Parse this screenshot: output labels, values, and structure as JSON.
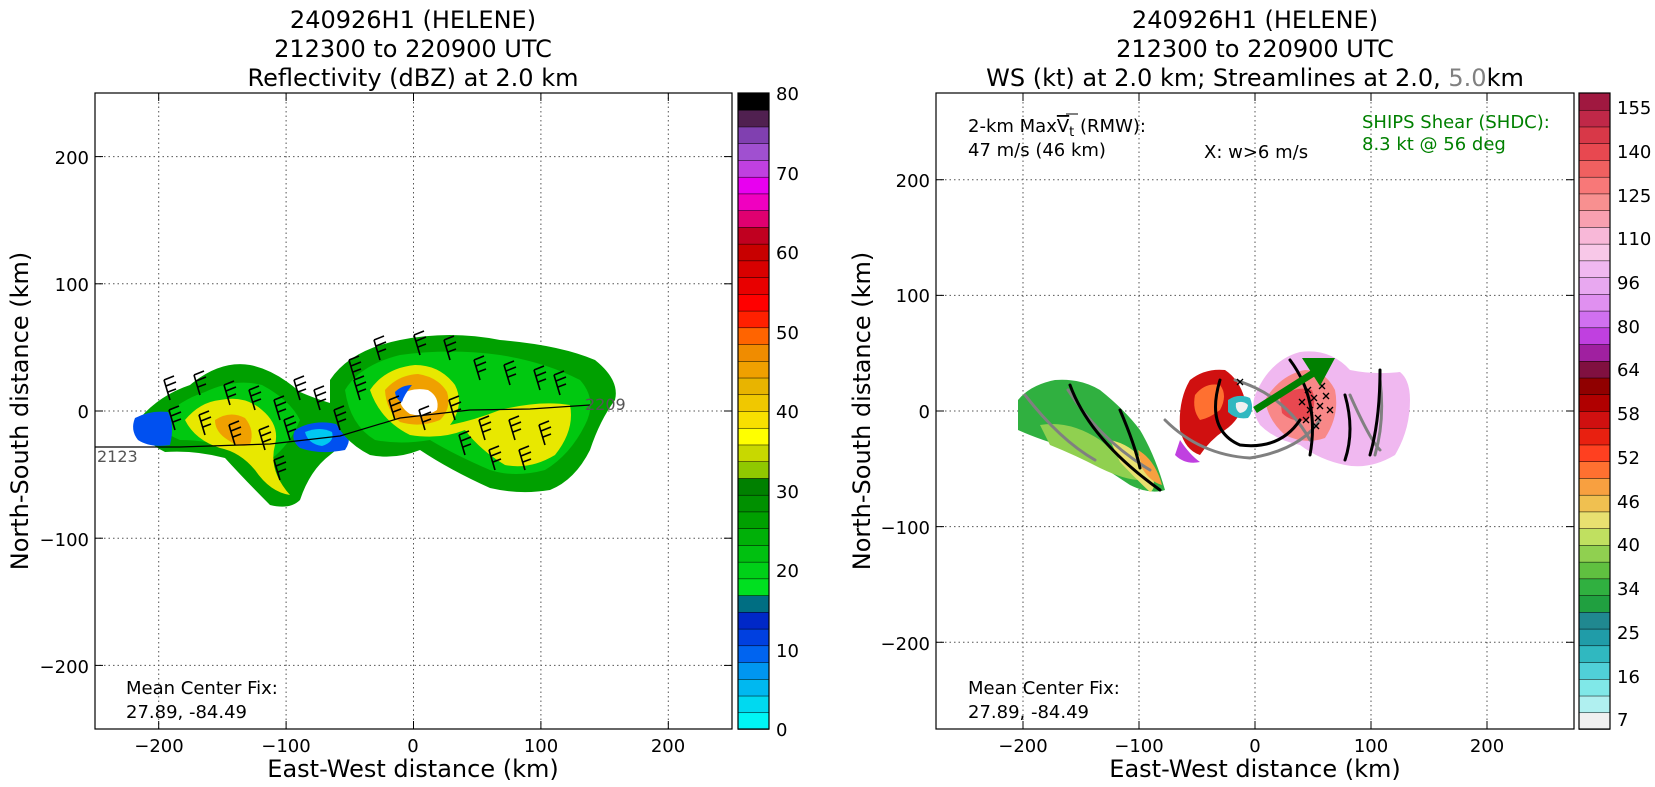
{
  "left_panel": {
    "title_lines": [
      "240926H1 (HELENE)",
      "212300 to 220900 UTC",
      "Reflectivity (dBZ) at 2.0 km"
    ],
    "xlabel": "East-West distance (km)",
    "ylabel": "North-South distance (km)",
    "x_ticks": [
      "−200",
      "−100",
      "0",
      "100",
      "200"
    ],
    "y_ticks": [
      "200",
      "100",
      "0",
      "−100",
      "−200"
    ],
    "center_fix_label": "Mean Center Fix:",
    "center_fix_value": "27.89, -84.49",
    "track_start_label": "2123",
    "track_end_label": "2209",
    "colorbar_ticks": [
      "80",
      "70",
      "60",
      "50",
      "40",
      "30",
      "20",
      "10",
      "0"
    ]
  },
  "right_panel": {
    "title_lines": [
      "240926H1 (HELENE)",
      "212300 to 220900 UTC"
    ],
    "title_line3_a": "WS (kt) at 2.0 km; Streamlines at 2.0, ",
    "title_line3_b": "5.0",
    "title_line3_c": "km",
    "xlabel": "East-West distance (km)",
    "ylabel": "North-South distance (km)",
    "x_ticks": [
      "−200",
      "−100",
      "0",
      "100",
      "200"
    ],
    "y_ticks": [
      "200",
      "100",
      "0",
      "−100",
      "−200"
    ],
    "maxvt_label_a": "2-km Max",
    "maxvt_label_b": "V",
    "maxvt_label_c": "t",
    "maxvt_label_d": " (RMW):",
    "maxvt_value": "47 m/s (46 km)",
    "updraft_note": "X: w>6 m/s",
    "shear_label": "SHIPS Shear (SHDC):",
    "shear_value": "8.3 kt @ 56 deg",
    "center_fix_label": "Mean Center Fix:",
    "center_fix_value": "27.89, -84.49",
    "colorbar_ticks": [
      "155",
      "140",
      "125",
      "110",
      "96",
      "80",
      "64",
      "58",
      "52",
      "46",
      "40",
      "34",
      "25",
      "16",
      "7"
    ]
  },
  "chart_data": [
    {
      "type": "heatmap",
      "title": "240926H1 (HELENE) 212300 to 220900 UTC Reflectivity (dBZ) at 2.0 km",
      "xlabel": "East-West distance (km)",
      "ylabel": "North-South distance (km)",
      "xlim": [
        -250,
        250
      ],
      "ylim": [
        -250,
        250
      ],
      "grid": true,
      "colorbar": {
        "min": 0,
        "max": 80,
        "ticks": [
          0,
          10,
          20,
          30,
          40,
          50,
          60,
          70,
          80
        ]
      },
      "track": {
        "start_label": "2123",
        "end_label": "2209"
      },
      "annotation": "Mean Center Fix: 27.89, -84.49",
      "colors": {
        "bins": [
          "#00f5f5",
          "#00d9f0",
          "#00b8f0",
          "#0096f0",
          "#0064f0",
          "#0040e0",
          "#0028c8",
          "#006e82",
          "#00e020",
          "#00d018",
          "#00c010",
          "#00b008",
          "#00a000",
          "#009000",
          "#008000",
          "#90c800",
          "#c8d800",
          "#ffff00",
          "#f8e000",
          "#f0c800",
          "#e8b400",
          "#f0a000",
          "#f08c00",
          "#ff6400",
          "#ff2000",
          "#ff0000",
          "#e80000",
          "#d80000",
          "#c80000",
          "#c00020",
          "#e00070",
          "#f000c0",
          "#e800f0",
          "#c040e0",
          "#a050d0",
          "#8040b0",
          "#502050",
          "#000000"
        ]
      }
    },
    {
      "type": "heatmap",
      "title": "240926H1 (HELENE) 212300 to 220900 UTC WS (kt) at 2.0 km; Streamlines at 2.0, 5.0 km",
      "xlabel": "East-West distance (km)",
      "ylabel": "North-South distance (km)",
      "xlim": [
        -275,
        275
      ],
      "ylim": [
        -275,
        275
      ],
      "grid": true,
      "colorbar": {
        "ticks": [
          7,
          16,
          25,
          34,
          40,
          46,
          52,
          58,
          64,
          80,
          96,
          110,
          125,
          140,
          155
        ]
      },
      "annotations": [
        "2-km MaxVt (RMW): 47 m/s (46 km)",
        "X: w>6 m/s",
        "SHIPS Shear (SHDC): 8.3 kt @ 56 deg",
        "Mean Center Fix: 27.89, -84.49"
      ],
      "shear_vector": {
        "speed_kt": 8.3,
        "direction_deg": 56
      },
      "colors": {
        "bins": [
          "#f0f0f0",
          "#b0f0f0",
          "#80e8e8",
          "#50d0d8",
          "#30b8c0",
          "#209ca8",
          "#208890",
          "#20a040",
          "#30b040",
          "#60c040",
          "#90d050",
          "#c0e060",
          "#e8e070",
          "#f0c050",
          "#f8a040",
          "#ff7030",
          "#ff4020",
          "#e82010",
          "#d01010",
          "#b00000",
          "#900000",
          "#801040",
          "#a020a0",
          "#c040e0",
          "#d070f0",
          "#e090f0",
          "#e8a8f0",
          "#f0b8f0",
          "#f8c8e8",
          "#f8b8d8",
          "#f8a0b0",
          "#f89090",
          "#f87878",
          "#f06060",
          "#e84850",
          "#d83848",
          "#c02848",
          "#a01840"
        ]
      }
    }
  ]
}
